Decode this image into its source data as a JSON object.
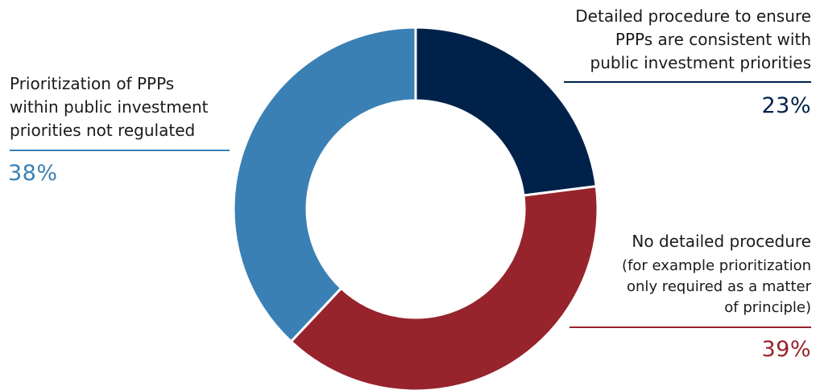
{
  "chart_data": {
    "type": "pie",
    "variant": "donut",
    "slices": [
      {
        "label": "Detailed procedure to ensure\nPPPs are consistent with\npublic investment priorities",
        "value": 23,
        "value_label": "23%",
        "color": "#00224a"
      },
      {
        "label": "No detailed procedure",
        "sublabel": "(for example prioritization\nonly required as a matter\nof principle)",
        "value": 39,
        "value_label": "39%",
        "color": "#97232c"
      },
      {
        "label": "Prioritization of PPPs\nwithin public investment\npriorities not regulated",
        "value": 38,
        "value_label": "38%",
        "color": "#3a80b4"
      }
    ],
    "start_angle": "12 o'clock",
    "direction": "clockwise",
    "legend": "none"
  }
}
